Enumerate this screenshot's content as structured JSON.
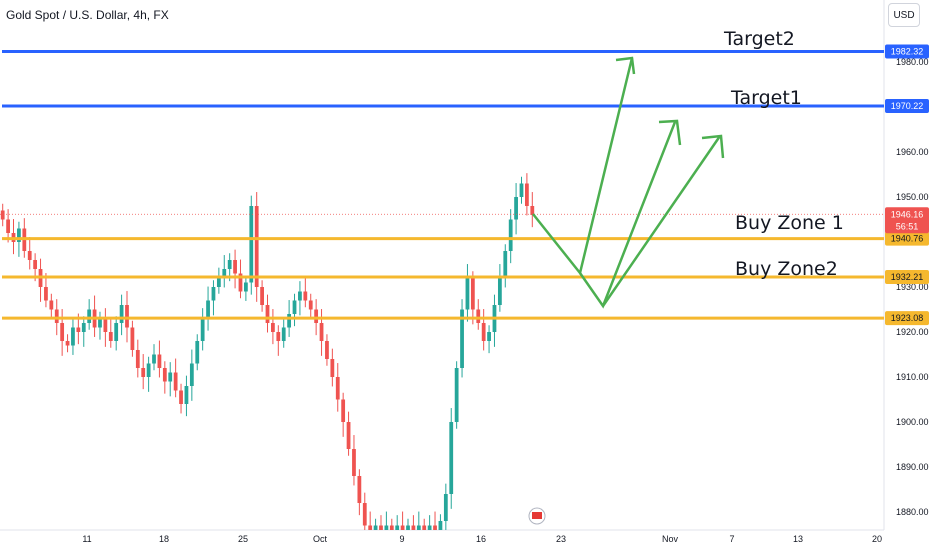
{
  "header": {
    "symbol": "Gold Spot / U.S. Dollar, 4h, FX",
    "currency": "USD"
  },
  "colors": {
    "up": "#26a69a",
    "down": "#ef5350",
    "target": "#2962ff",
    "zone": "#f5b82e",
    "arrow": "#4caf50",
    "current": "#ef5350"
  },
  "chart_data": {
    "type": "candlestick",
    "ylim": [
      1876,
      1990
    ],
    "y_ticks": [
      "1980.00",
      "1960.00",
      "1950.00",
      "1940.00",
      "1930.00",
      "1920.00",
      "1910.00",
      "1900.00",
      "1890.00",
      "1880.00"
    ],
    "x_ticks": [
      "11",
      "18",
      "25",
      "Oct",
      "9",
      "16",
      "23",
      "Nov",
      "7",
      "13",
      "20"
    ],
    "levels": [
      {
        "name": "Target2",
        "value": 1982.32,
        "label": "1982.32",
        "kind": "target"
      },
      {
        "name": "Target1",
        "value": 1970.22,
        "label": "1970.22",
        "kind": "target"
      },
      {
        "name": "Buy Zone 1",
        "value": 1940.76,
        "label": "1940.76",
        "kind": "zone"
      },
      {
        "name": "Buy Zone2",
        "value": 1932.21,
        "label": "1932.21",
        "kind": "zone"
      },
      {
        "name": "",
        "value": 1923.08,
        "label": "1923.08",
        "kind": "zone"
      }
    ],
    "current_price": {
      "value": 1946.16,
      "label": "1946.16",
      "countdown": "56:51"
    },
    "annotations": [
      "Target2",
      "Target1",
      "Buy Zone 1",
      "Buy Zone2"
    ],
    "series_close": [
      1945,
      1942,
      1940,
      1943,
      1938,
      1936,
      1934,
      1930,
      1927,
      1925,
      1922,
      1918,
      1917,
      1921,
      1920,
      1922,
      1925,
      1921,
      1923,
      1920,
      1918,
      1922,
      1926,
      1921,
      1916,
      1912,
      1910,
      1913,
      1915,
      1912,
      1909,
      1911,
      1907,
      1904,
      1908,
      1913,
      1918,
      1923,
      1927,
      1930,
      1932,
      1934,
      1936,
      1933,
      1929,
      1931,
      1948,
      1930,
      1926,
      1922,
      1920,
      1918,
      1921,
      1924,
      1927,
      1929,
      1927,
      1925,
      1922,
      1918,
      1914,
      1910,
      1905,
      1900,
      1894,
      1888,
      1882,
      1877,
      1876,
      1877,
      1876,
      1877,
      1876,
      1877,
      1876,
      1877,
      1876,
      1877,
      1876,
      1877,
      1876,
      1878,
      1884,
      1900,
      1912,
      1925,
      1932,
      1925,
      1922,
      1918,
      1920,
      1926,
      1932,
      1938,
      1945,
      1950,
      1953,
      1948,
      1946
    ]
  }
}
